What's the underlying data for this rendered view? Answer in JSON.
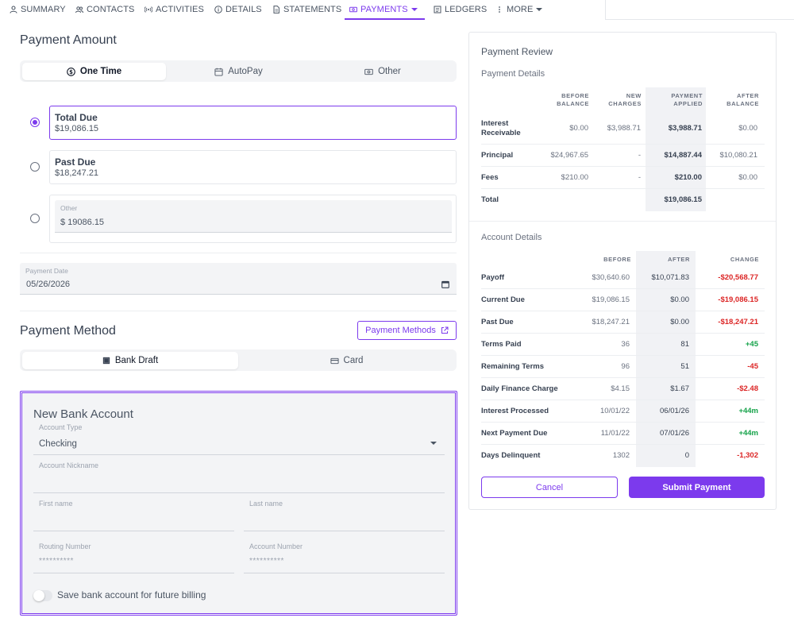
{
  "nav": {
    "items": [
      {
        "label": "SUMMARY",
        "icon": "user-icon"
      },
      {
        "label": "CONTACTS",
        "icon": "users-icon"
      },
      {
        "label": "ACTIVITIES",
        "icon": "broadcast-icon"
      },
      {
        "label": "DETAILS",
        "icon": "info-circle-icon"
      },
      {
        "label": "STATEMENTS",
        "icon": "document-icon"
      },
      {
        "label": "PAYMENTS",
        "icon": "money-icon",
        "active": true
      },
      {
        "label": "LEDGERS",
        "icon": "list-icon"
      },
      {
        "label": "MORE",
        "icon": "more-vertical-icon"
      }
    ]
  },
  "payment_amount": {
    "title": "Payment Amount",
    "tabs": [
      "One Time",
      "AutoPay",
      "Other"
    ],
    "active_tab": "One Time",
    "options": [
      {
        "title": "Total Due",
        "value": "$19,086.15",
        "selected": true
      },
      {
        "title": "Past Due",
        "value": "$18,247.21",
        "selected": false
      }
    ],
    "other": {
      "label": "Other",
      "value": "$ 19086.15"
    },
    "payment_date": {
      "label": "Payment Date",
      "value": "05/26/2026"
    }
  },
  "payment_method": {
    "title": "Payment Method",
    "methods_button": "Payment Methods",
    "tabs": [
      "Bank Draft",
      "Card"
    ],
    "active_tab": "Bank Draft"
  },
  "bank_account": {
    "title": "New Bank Account",
    "account_type": {
      "label": "Account Type",
      "value": "Checking"
    },
    "nickname": {
      "label": "Account Nickname",
      "value": ""
    },
    "first_name": {
      "label": "First name",
      "value": ""
    },
    "last_name": {
      "label": "Last name",
      "value": ""
    },
    "routing": {
      "label": "Routing Number",
      "value": "**********"
    },
    "account_number": {
      "label": "Account Number",
      "value": "**********"
    },
    "save_toggle": {
      "label": "Save bank account for future billing",
      "on": false
    }
  },
  "review": {
    "title": "Payment Review",
    "details_title": "Payment Details",
    "details_headers": [
      [
        "BEFORE",
        "BALANCE"
      ],
      [
        "NEW",
        "CHARGES"
      ],
      [
        "PAYMENT",
        "APPLIED"
      ],
      [
        "AFTER",
        "BALANCE"
      ]
    ],
    "details_rows": [
      {
        "label": [
          "Interest",
          "Receivable"
        ],
        "cells": [
          "$0.00",
          "$3,988.71",
          "$3,988.71",
          "$0.00"
        ]
      },
      {
        "label": [
          "Principal"
        ],
        "cells": [
          "$24,967.65",
          "-",
          "$14,887.44",
          "$10,080.21"
        ]
      },
      {
        "label": [
          "Fees"
        ],
        "cells": [
          "$210.00",
          "-",
          "$210.00",
          "$0.00"
        ]
      },
      {
        "label": [
          "Total"
        ],
        "cells": [
          "",
          "",
          "$19,086.15",
          ""
        ]
      }
    ],
    "account_title": "Account Details",
    "account_headers": [
      "BEFORE",
      "AFTER",
      "CHANGE"
    ],
    "account_rows": [
      {
        "label": "Payoff",
        "before": "$30,640.60",
        "after": "$10,071.83",
        "change": "-$20,568.77",
        "dir": "neg"
      },
      {
        "label": "Current Due",
        "before": "$19,086.15",
        "after": "$0.00",
        "change": "-$19,086.15",
        "dir": "neg"
      },
      {
        "label": "Past Due",
        "before": "$18,247.21",
        "after": "$0.00",
        "change": "-$18,247.21",
        "dir": "neg"
      },
      {
        "label": "Terms Paid",
        "before": "36",
        "after": "81",
        "change": "+45",
        "dir": "pos"
      },
      {
        "label": "Remaining Terms",
        "before": "96",
        "after": "51",
        "change": "-45",
        "dir": "neg"
      },
      {
        "label": "Daily Finance Charge",
        "before": "$4.15",
        "after": "$1.67",
        "change": "-$2.48",
        "dir": "neg"
      },
      {
        "label": "Interest Processed",
        "before": "10/01/22",
        "after": "06/01/26",
        "change": "+44m",
        "dir": "pos"
      },
      {
        "label": "Next Payment Due",
        "before": "11/01/22",
        "after": "07/01/26",
        "change": "+44m",
        "dir": "pos"
      },
      {
        "label": "Days Delinquent",
        "before": "1302",
        "after": "0",
        "change": "-1,302",
        "dir": "neg"
      }
    ],
    "cancel_label": "Cancel",
    "submit_label": "Submit Payment"
  },
  "colors": {
    "accent": "#7c3aed",
    "negative": "#dc2626",
    "positive": "#16a34a"
  }
}
